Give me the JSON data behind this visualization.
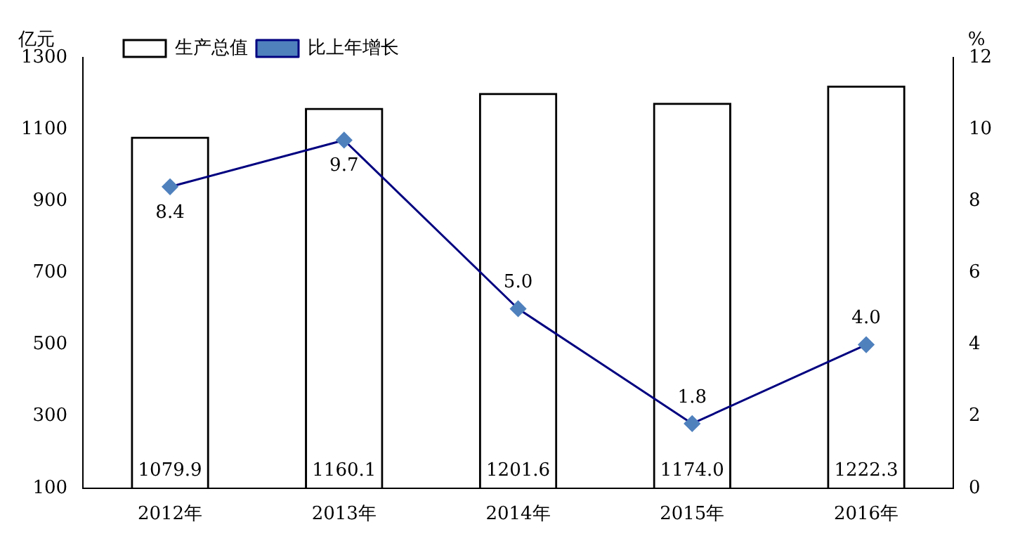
{
  "chart_data": {
    "type": "bar",
    "ylabel": "亿元",
    "y2label": "%",
    "categories": [
      "2012年",
      "2013年",
      "2014年",
      "2015年",
      "2016年"
    ],
    "series": [
      {
        "name": "生产总值",
        "color": "#000000",
        "values": [
          1079.9,
          1160.1,
          1201.6,
          1174.0,
          1222.3
        ],
        "value_labels": [
          "1079.9",
          "1160.1",
          "1201.6",
          "1174.0",
          "1222.3"
        ]
      },
      {
        "name": "比上年增长",
        "type": "line",
        "axis": "y2",
        "color": "#000080",
        "values": [
          8.4,
          9.7,
          5.0,
          1.8,
          4.0
        ],
        "value_labels": [
          "8.4",
          "9.7",
          "5.0",
          "1.8",
          "4.0"
        ]
      }
    ],
    "ylim": [
      100,
      1300
    ],
    "yticks": [
      100,
      300,
      500,
      700,
      900,
      1100,
      1300
    ],
    "y2lim": [
      0,
      12
    ],
    "y2ticks": [
      0,
      2,
      4,
      6,
      8,
      10,
      12
    ],
    "legend": "top left",
    "grid": false,
    "marker": "diamond",
    "line_style": "solid"
  }
}
